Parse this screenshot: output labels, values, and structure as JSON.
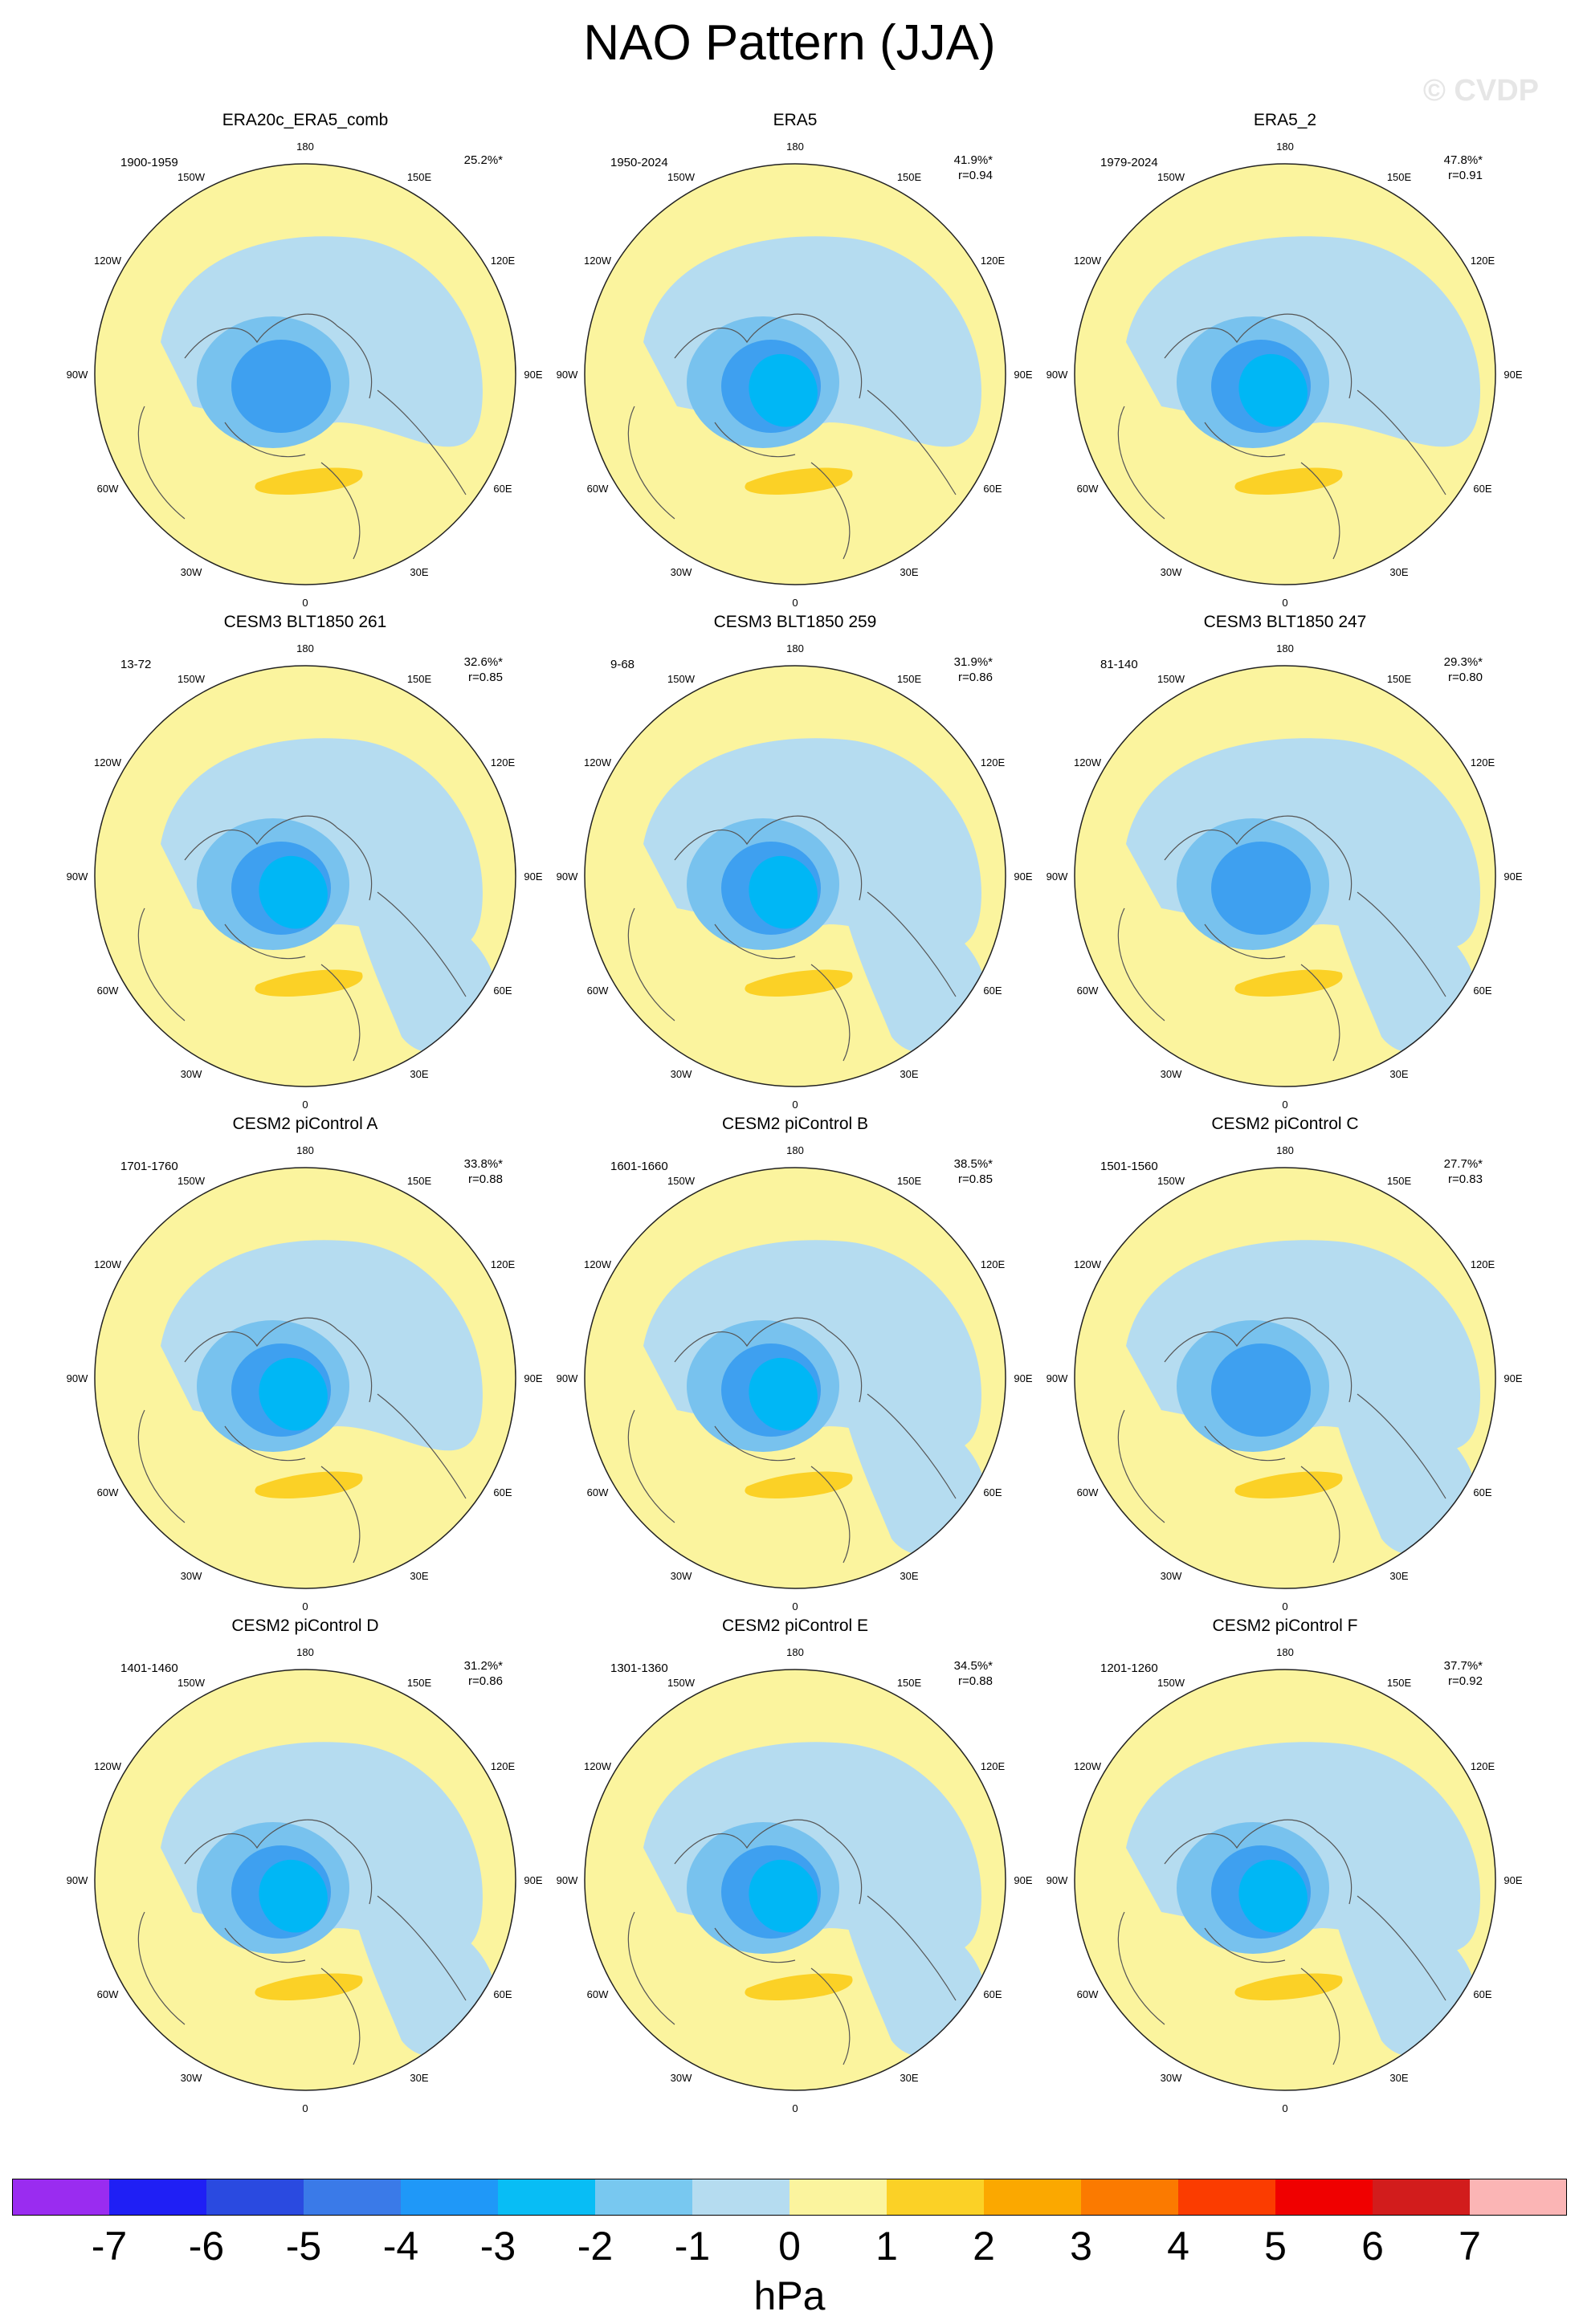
{
  "title": "NAO Pattern (JJA)",
  "watermark": "© CVDP",
  "colors": {
    "neg_strong": "#3ea0f0",
    "neg_mid": "#78c2ee",
    "neg_weak": "#b5dcf0",
    "neg_core": "#00b7f5",
    "pos_weak": "#fbf49e",
    "pos_mid": "#fbd126",
    "land_line": "#555555",
    "circle_line": "#222222"
  },
  "longitude_labels": [
    "180",
    "150E",
    "120E",
    "90E",
    "60E",
    "30E",
    "0",
    "30W",
    "60W",
    "90W",
    "120W",
    "150W"
  ],
  "chart_data": {
    "type": "heatmap",
    "projection": "north polar stereographic",
    "variable": "sea level pressure anomaly (regression on NAO index)",
    "units": "hPa",
    "panels": [
      {
        "name": "ERA20c_ERA5_comb",
        "period": "1900-1959",
        "pct": "25.2%*",
        "r": ""
      },
      {
        "name": "ERA5",
        "period": "1950-2024",
        "pct": "41.9%*",
        "r": "r=0.94"
      },
      {
        "name": "ERA5_2",
        "period": "1979-2024",
        "pct": "47.8%*",
        "r": "r=0.91"
      },
      {
        "name": "CESM3 BLT1850 261",
        "period": "13-72",
        "pct": "32.6%*",
        "r": "r=0.85"
      },
      {
        "name": "CESM3 BLT1850 259",
        "period": "9-68",
        "pct": "31.9%*",
        "r": "r=0.86"
      },
      {
        "name": "CESM3 BLT1850 247",
        "period": "81-140",
        "pct": "29.3%*",
        "r": "r=0.80"
      },
      {
        "name": "CESM2 piControl A",
        "period": "1701-1760",
        "pct": "33.8%*",
        "r": "r=0.88"
      },
      {
        "name": "CESM2 piControl B",
        "period": "1601-1660",
        "pct": "38.5%*",
        "r": "r=0.85"
      },
      {
        "name": "CESM2 piControl C",
        "period": "1501-1560",
        "pct": "27.7%*",
        "r": "r=0.83"
      },
      {
        "name": "CESM2 piControl D",
        "period": "1401-1460",
        "pct": "31.2%*",
        "r": "r=0.86"
      },
      {
        "name": "CESM2 piControl E",
        "period": "1301-1360",
        "pct": "34.5%*",
        "r": "r=0.88"
      },
      {
        "name": "CESM2 piControl F",
        "period": "1201-1260",
        "pct": "37.7%*",
        "r": "r=0.92"
      }
    ],
    "colorbar": {
      "label": "hPa",
      "ticks": [
        "-7",
        "-6",
        "-5",
        "-4",
        "-3",
        "-2",
        "-1",
        "0",
        "1",
        "2",
        "3",
        "4",
        "5",
        "6",
        "7"
      ],
      "colors": [
        "#9a2cf0",
        "#1f1ff5",
        "#2a4ae0",
        "#3a7ae8",
        "#1f98f8",
        "#08bdf5",
        "#78c8f0",
        "#b5dcf0",
        "#fbf49e",
        "#fbd126",
        "#fba800",
        "#fb7a00",
        "#fb3c00",
        "#f00000",
        "#d21c1c",
        "#fbb5b5"
      ]
    }
  }
}
